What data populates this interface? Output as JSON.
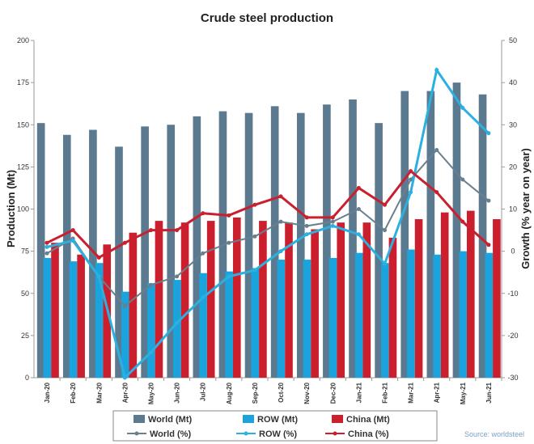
{
  "chart_data": {
    "type": "bar",
    "title": "Crude steel production",
    "ylabel": "Production (Mt)",
    "y2label": "Growth (% year on year)",
    "ylim": [
      0,
      200
    ],
    "y2lim": [
      -30,
      50
    ],
    "yticks": [
      0,
      25,
      50,
      75,
      100,
      125,
      150,
      175,
      200
    ],
    "y2ticks": [
      -30,
      -20,
      -10,
      0,
      10,
      20,
      30,
      40,
      50
    ],
    "grid": false,
    "legend_placement": "bottom",
    "source": "Source: worldsteel",
    "categories": [
      "Jan-20",
      "Feb-20",
      "Mar-20",
      "Apr-20",
      "May-20",
      "Jun-20",
      "Jul-20",
      "Aug-20",
      "Sep-20",
      "Oct-20",
      "Nov-20",
      "Dec-20",
      "Jan-21",
      "Feb-21",
      "Mar-21",
      "Apr-21",
      "May-21",
      "Jun-21"
    ],
    "bar_series": [
      {
        "name": "World (Mt)",
        "color": "#5b7a8f",
        "values": [
          151,
          144,
          147,
          137,
          149,
          150,
          155,
          158,
          157,
          161,
          157,
          162,
          165,
          151,
          170,
          170,
          175,
          168
        ]
      },
      {
        "name": "ROW (Mt)",
        "color": "#1aa3dc",
        "values": [
          71,
          69,
          68,
          51,
          56,
          58,
          62,
          63,
          65,
          70,
          70,
          71,
          74,
          68,
          76,
          73,
          75,
          74
        ]
      },
      {
        "name": "China (Mt)",
        "color": "#cc1f2e",
        "values": [
          80,
          73,
          79,
          86,
          93,
          92,
          93,
          95,
          93,
          92,
          88,
          92,
          92,
          83,
          94,
          98,
          99,
          94
        ]
      }
    ],
    "line_series": [
      {
        "name": "World (%)",
        "color": "#6a7f8e",
        "axis": "right",
        "values": [
          -0.5,
          3,
          -6,
          -13,
          -8,
          -6,
          -0.5,
          2,
          3.5,
          7,
          6,
          7,
          10,
          5,
          17,
          24,
          17,
          12
        ]
      },
      {
        "name": "ROW (%)",
        "color": "#2bb0e0",
        "axis": "right",
        "values": [
          1,
          2.5,
          -6,
          -30,
          -24,
          -17,
          -11,
          -6,
          -4.5,
          0,
          4,
          6,
          4,
          -3,
          14,
          43,
          34,
          28
        ]
      },
      {
        "name": "China (%)",
        "color": "#c8202f",
        "axis": "right",
        "values": [
          2,
          5,
          -1.5,
          2,
          5,
          5,
          9,
          8.5,
          11,
          13,
          8,
          8,
          15,
          11,
          19,
          14,
          7,
          1.5
        ]
      }
    ]
  }
}
